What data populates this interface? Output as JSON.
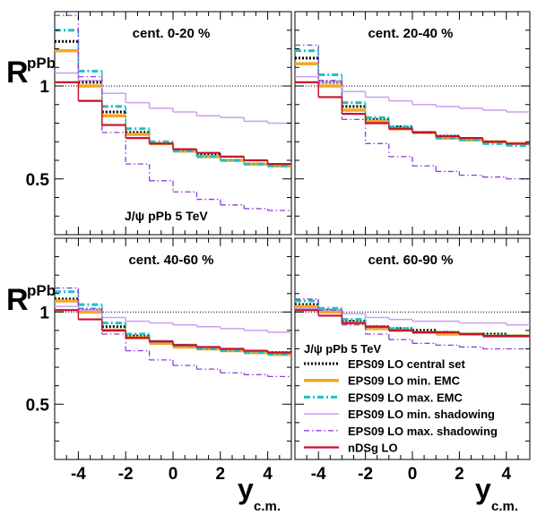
{
  "chart_data": {
    "type": "line",
    "y_label_main": "R",
    "y_label_sub": "pPb",
    "x_label_main": "y",
    "x_label_sub": "c.m.",
    "xlim": [
      -5,
      5
    ],
    "ylim": [
      0.2,
      1.4
    ],
    "reference_line": 1.0,
    "x_ticks": [
      -4,
      -2,
      0,
      2,
      4
    ],
    "y_ticks": [
      0.5,
      1
    ],
    "bin_edges": [
      -5,
      -4,
      -3,
      -2,
      -1,
      0,
      1,
      2,
      3,
      4,
      5
    ],
    "annotation": "J/ψ pPb 5 TeV",
    "legend_header": "J/ψ pPb 5 TeV",
    "series_styles": [
      {
        "name": "EPS09 LO central set",
        "color": "#000000",
        "dash": "2,2",
        "width": 3
      },
      {
        "name": "EPS09 LO min. EMC",
        "color": "#f5a623",
        "dash": "",
        "width": 3.5
      },
      {
        "name": "EPS09 LO max. EMC",
        "color": "#1fc1c1",
        "dash": "7,3,2,3",
        "width": 3
      },
      {
        "name": "EPS09 LO min. shadowing",
        "color": "#c8a0f0",
        "dash": "",
        "width": 1.5
      },
      {
        "name": "EPS09 LO max. shadowing",
        "color": "#8a3fd8",
        "dash": "6,3,1.5,3",
        "width": 1.3
      },
      {
        "name": "nDSg LO",
        "color": "#c8102e",
        "dash": "",
        "width": 2.2
      }
    ],
    "panels": [
      {
        "title": "cent. 0-20 %",
        "series": [
          {
            "name": "EPS09 LO central set",
            "values": [
              1.24,
              1.02,
              0.86,
              0.75,
              0.69,
              0.65,
              0.63,
              0.6,
              0.58,
              0.57
            ]
          },
          {
            "name": "EPS09 LO min. EMC",
            "values": [
              1.19,
              1.0,
              0.84,
              0.74,
              0.69,
              0.65,
              0.62,
              0.6,
              0.58,
              0.57
            ]
          },
          {
            "name": "EPS09 LO max. EMC",
            "values": [
              1.3,
              1.08,
              0.89,
              0.77,
              0.7,
              0.65,
              0.62,
              0.6,
              0.58,
              0.57
            ]
          },
          {
            "name": "EPS09 LO min. shadowing",
            "values": [
              1.07,
              1.03,
              0.96,
              0.91,
              0.88,
              0.86,
              0.84,
              0.83,
              0.81,
              0.8
            ]
          },
          {
            "name": "EPS09 LO max. shadowing",
            "values": [
              1.38,
              1.05,
              0.75,
              0.58,
              0.49,
              0.43,
              0.39,
              0.36,
              0.34,
              0.33
            ]
          },
          {
            "name": "nDSg LO",
            "values": [
              1.02,
              0.92,
              0.79,
              0.72,
              0.69,
              0.66,
              0.64,
              0.62,
              0.6,
              0.58
            ]
          }
        ]
      },
      {
        "title": "cent. 20-40 %",
        "series": [
          {
            "name": "EPS09 LO central set",
            "values": [
              1.15,
              1.02,
              0.89,
              0.82,
              0.78,
              0.75,
              0.73,
              0.71,
              0.7,
              0.69
            ]
          },
          {
            "name": "EPS09 LO min. EMC",
            "values": [
              1.12,
              1.0,
              0.87,
              0.81,
              0.77,
              0.75,
              0.72,
              0.71,
              0.7,
              0.69
            ]
          },
          {
            "name": "EPS09 LO max. EMC",
            "values": [
              1.19,
              1.06,
              0.91,
              0.83,
              0.78,
              0.75,
              0.72,
              0.71,
              0.69,
              0.68
            ]
          },
          {
            "name": "EPS09 LO min. shadowing",
            "values": [
              1.05,
              1.02,
              0.97,
              0.94,
              0.92,
              0.9,
              0.89,
              0.88,
              0.87,
              0.86
            ]
          },
          {
            "name": "EPS09 LO max. shadowing",
            "values": [
              1.22,
              1.03,
              0.82,
              0.69,
              0.62,
              0.57,
              0.54,
              0.52,
              0.51,
              0.5
            ]
          },
          {
            "name": "nDSg LO",
            "values": [
              1.02,
              0.94,
              0.85,
              0.8,
              0.77,
              0.75,
              0.73,
              0.72,
              0.7,
              0.69
            ]
          }
        ]
      },
      {
        "title": "cent. 40-60 %",
        "series": [
          {
            "name": "EPS09 LO central set",
            "values": [
              1.07,
              1.01,
              0.92,
              0.87,
              0.84,
              0.82,
              0.8,
              0.79,
              0.78,
              0.78
            ]
          },
          {
            "name": "EPS09 LO min. EMC",
            "values": [
              1.06,
              1.0,
              0.9,
              0.86,
              0.83,
              0.81,
              0.8,
              0.79,
              0.78,
              0.77
            ]
          },
          {
            "name": "EPS09 LO max. EMC",
            "values": [
              1.11,
              1.04,
              0.94,
              0.88,
              0.84,
              0.82,
              0.8,
              0.79,
              0.78,
              0.77
            ]
          },
          {
            "name": "EPS09 LO min. shadowing",
            "values": [
              1.03,
              1.01,
              0.97,
              0.95,
              0.94,
              0.93,
              0.92,
              0.91,
              0.9,
              0.89
            ]
          },
          {
            "name": "EPS09 LO max. shadowing",
            "values": [
              1.13,
              1.02,
              0.88,
              0.79,
              0.74,
              0.71,
              0.69,
              0.67,
              0.66,
              0.65
            ]
          },
          {
            "name": "nDSg LO",
            "values": [
              1.01,
              0.96,
              0.9,
              0.86,
              0.84,
              0.82,
              0.81,
              0.8,
              0.79,
              0.78
            ]
          }
        ]
      },
      {
        "title": "cent. 60-90 %",
        "series": [
          {
            "name": "EPS09 LO central set",
            "values": [
              1.04,
              1.01,
              0.95,
              0.92,
              0.91,
              0.9,
              0.89,
              0.88,
              0.88,
              0.87
            ]
          },
          {
            "name": "EPS09 LO min. EMC",
            "values": [
              1.03,
              1.0,
              0.94,
              0.91,
              0.9,
              0.89,
              0.88,
              0.88,
              0.87,
              0.87
            ]
          },
          {
            "name": "EPS09 LO max. EMC",
            "values": [
              1.06,
              1.02,
              0.96,
              0.92,
              0.91,
              0.89,
              0.89,
              0.88,
              0.87,
              0.87
            ]
          },
          {
            "name": "EPS09 LO min. shadowing",
            "values": [
              1.02,
              1.01,
              0.99,
              0.97,
              0.96,
              0.95,
              0.95,
              0.94,
              0.94,
              0.93
            ]
          },
          {
            "name": "EPS09 LO max. shadowing",
            "values": [
              1.07,
              1.01,
              0.93,
              0.88,
              0.85,
              0.83,
              0.82,
              0.81,
              0.8,
              0.8
            ]
          },
          {
            "name": "nDSg LO",
            "values": [
              1.01,
              0.98,
              0.94,
              0.92,
              0.9,
              0.89,
              0.89,
              0.88,
              0.87,
              0.87
            ]
          }
        ]
      }
    ]
  }
}
